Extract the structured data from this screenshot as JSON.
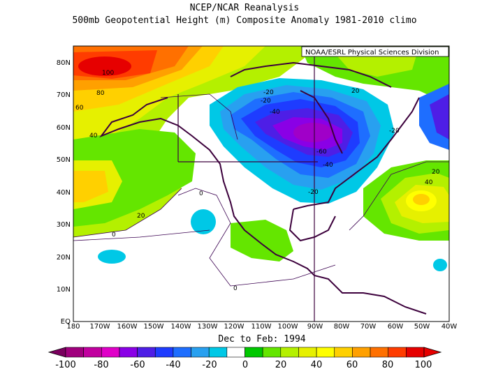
{
  "header": {
    "title": "NCEP/NCAR Reanalysis",
    "subtitle": "500mb Geopotential Height (m) Composite Anomaly 1981-2010 climo"
  },
  "credit": "NOAA/ESRL Physical Sciences Division",
  "period": "Dec to Feb: 1994",
  "map": {
    "lat_labels": [
      "80N",
      "70N",
      "60N",
      "50N",
      "40N",
      "30N",
      "20N",
      "10N",
      "EQ"
    ],
    "lon_labels": [
      "180",
      "170W",
      "160W",
      "150W",
      "140W",
      "130W",
      "120W",
      "110W",
      "100W",
      "90W",
      "80W",
      "70W",
      "60W",
      "50W",
      "40W"
    ],
    "contour_labels": [
      "100",
      "80",
      "60",
      "40",
      "20",
      "0",
      "0",
      "0",
      "-20",
      "-20",
      "-40",
      "-60",
      "-40",
      "-20",
      "-20",
      "20",
      "20",
      "40"
    ],
    "extent": {
      "lon": [
        -180,
        -40
      ],
      "lat": [
        0,
        85
      ]
    }
  },
  "colorbar": {
    "labels": [
      "-100",
      "-80",
      "-60",
      "-40",
      "-20",
      "0",
      "20",
      "40",
      "60",
      "80",
      "100"
    ],
    "colors": [
      "#a0007d",
      "#c1009f",
      "#e000c8",
      "#8a00e6",
      "#4e1ee6",
      "#1e3cff",
      "#1e6eff",
      "#28a0f0",
      "#00c8e6",
      "#ffffff",
      "#00c800",
      "#64e600",
      "#b4f000",
      "#e6f000",
      "#ffff00",
      "#ffd000",
      "#ffa000",
      "#ff7000",
      "#ff3c00",
      "#e60000"
    ]
  }
}
